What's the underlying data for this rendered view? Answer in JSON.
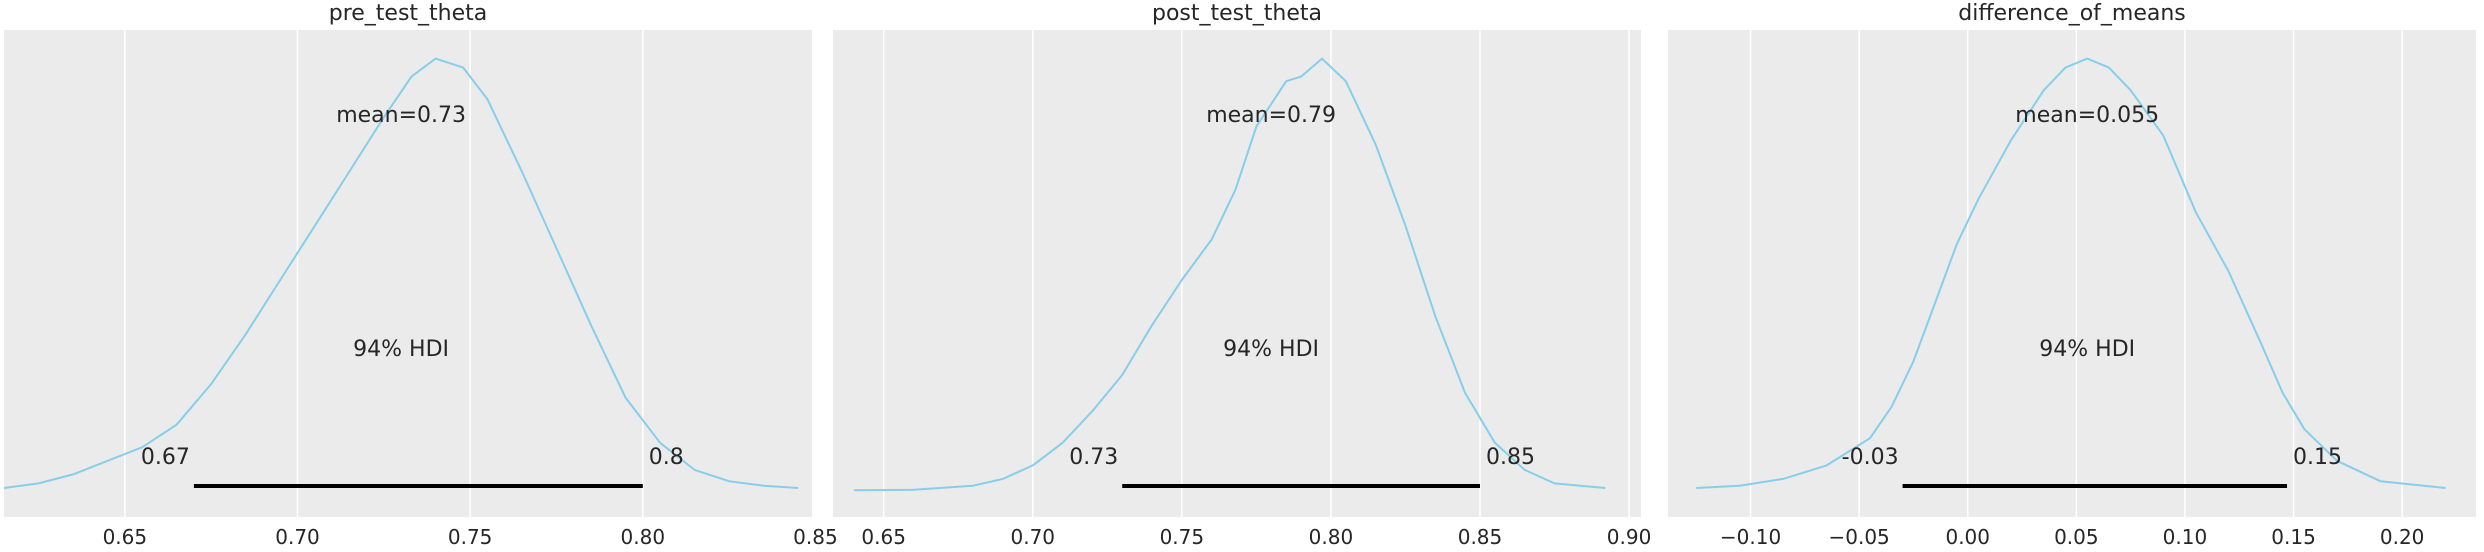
{
  "chart_data": [
    {
      "type": "area",
      "title": "pre_test_theta",
      "xlim": [
        0.615,
        0.849
      ],
      "xticks": [
        "0.65",
        "0.70",
        "0.75",
        "0.80",
        "0.85"
      ],
      "xtick_values": [
        0.65,
        0.7,
        0.75,
        0.8,
        0.85
      ],
      "grid": true,
      "curve_color": "#87ceeb",
      "density": [
        [
          0.615,
          0.02
        ],
        [
          0.625,
          0.03
        ],
        [
          0.635,
          0.05
        ],
        [
          0.645,
          0.08
        ],
        [
          0.655,
          0.11
        ],
        [
          0.665,
          0.16
        ],
        [
          0.675,
          0.25
        ],
        [
          0.685,
          0.36
        ],
        [
          0.695,
          0.48
        ],
        [
          0.705,
          0.6
        ],
        [
          0.715,
          0.72
        ],
        [
          0.725,
          0.84
        ],
        [
          0.733,
          0.93
        ],
        [
          0.74,
          0.97
        ],
        [
          0.748,
          0.95
        ],
        [
          0.755,
          0.88
        ],
        [
          0.765,
          0.72
        ],
        [
          0.775,
          0.55
        ],
        [
          0.785,
          0.38
        ],
        [
          0.795,
          0.22
        ],
        [
          0.805,
          0.12
        ],
        [
          0.815,
          0.06
        ],
        [
          0.825,
          0.035
        ],
        [
          0.835,
          0.025
        ],
        [
          0.845,
          0.02
        ]
      ],
      "mean_label": "mean=0.73",
      "hdi_label": "94% HDI",
      "hdi": [
        0.67,
        0.8
      ],
      "hdi_low_label": "0.67",
      "hdi_high_label": "0.8"
    },
    {
      "type": "area",
      "title": "post_test_theta",
      "xlim": [
        0.633,
        0.904
      ],
      "xticks": [
        "0.65",
        "0.70",
        "0.75",
        "0.80",
        "0.85",
        "0.90"
      ],
      "xtick_values": [
        0.65,
        0.7,
        0.75,
        0.8,
        0.85,
        0.9
      ],
      "grid": true,
      "curve_color": "#87ceeb",
      "density": [
        [
          0.64,
          0.015
        ],
        [
          0.66,
          0.016
        ],
        [
          0.68,
          0.025
        ],
        [
          0.69,
          0.04
        ],
        [
          0.7,
          0.07
        ],
        [
          0.71,
          0.12
        ],
        [
          0.72,
          0.19
        ],
        [
          0.73,
          0.27
        ],
        [
          0.74,
          0.38
        ],
        [
          0.75,
          0.48
        ],
        [
          0.76,
          0.57
        ],
        [
          0.768,
          0.68
        ],
        [
          0.775,
          0.82
        ],
        [
          0.785,
          0.92
        ],
        [
          0.79,
          0.93
        ],
        [
          0.797,
          0.97
        ],
        [
          0.805,
          0.92
        ],
        [
          0.815,
          0.78
        ],
        [
          0.825,
          0.6
        ],
        [
          0.835,
          0.4
        ],
        [
          0.845,
          0.23
        ],
        [
          0.855,
          0.12
        ],
        [
          0.865,
          0.06
        ],
        [
          0.875,
          0.03
        ],
        [
          0.892,
          0.02
        ]
      ],
      "mean_label": "mean=0.79",
      "hdi_label": "94% HDI",
      "hdi": [
        0.73,
        0.85
      ],
      "hdi_low_label": "0.73",
      "hdi_high_label": "0.85"
    },
    {
      "type": "area",
      "title": "difference_of_means",
      "xlim": [
        -0.138,
        0.234
      ],
      "xticks": [
        "−0.10",
        "−0.05",
        "0.00",
        "0.05",
        "0.10",
        "0.15",
        "0.20"
      ],
      "xtick_values": [
        -0.1,
        -0.05,
        0.0,
        0.05,
        0.1,
        0.15,
        0.2
      ],
      "grid": true,
      "curve_color": "#87ceeb",
      "density": [
        [
          -0.125,
          0.02
        ],
        [
          -0.105,
          0.025
        ],
        [
          -0.085,
          0.04
        ],
        [
          -0.065,
          0.07
        ],
        [
          -0.045,
          0.13
        ],
        [
          -0.035,
          0.2
        ],
        [
          -0.025,
          0.3
        ],
        [
          -0.015,
          0.43
        ],
        [
          -0.005,
          0.56
        ],
        [
          0.005,
          0.66
        ],
        [
          0.02,
          0.79
        ],
        [
          0.035,
          0.9
        ],
        [
          0.045,
          0.95
        ],
        [
          0.055,
          0.97
        ],
        [
          0.065,
          0.95
        ],
        [
          0.075,
          0.9
        ],
        [
          0.09,
          0.8
        ],
        [
          0.105,
          0.63
        ],
        [
          0.12,
          0.5
        ],
        [
          0.135,
          0.34
        ],
        [
          0.145,
          0.23
        ],
        [
          0.155,
          0.15
        ],
        [
          0.17,
          0.08
        ],
        [
          0.19,
          0.035
        ],
        [
          0.22,
          0.02
        ]
      ],
      "mean_label": "mean=0.055",
      "hdi_label": "94% HDI",
      "hdi": [
        -0.03,
        0.147
      ],
      "hdi_low_label": "-0.03",
      "hdi_high_label": "0.15"
    }
  ]
}
